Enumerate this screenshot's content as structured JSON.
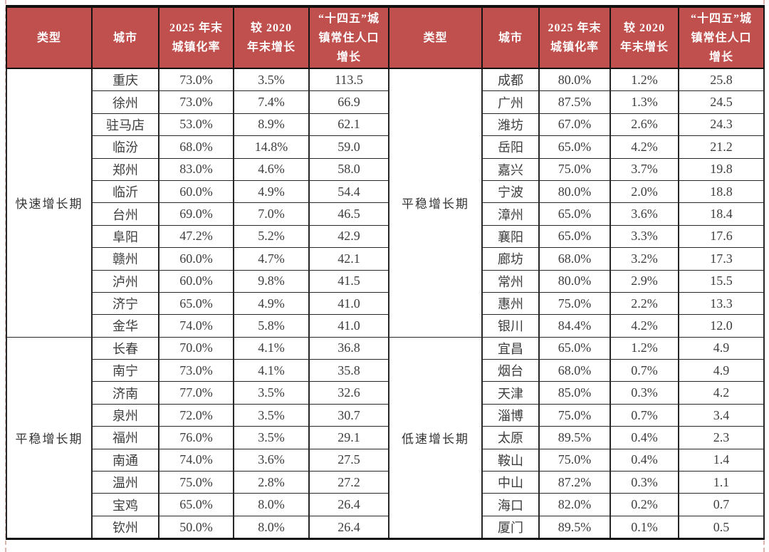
{
  "colors": {
    "header_bg": "#C0504D",
    "header_text": "#FFFFFF",
    "body_text": "#3D3D3D",
    "grid_line": "#262626",
    "thick_border": "#101010",
    "page_bg": "#FFFFFF",
    "page_boundary_dash": "#DCB4AE"
  },
  "header": {
    "columns": [
      "类型",
      "城市",
      "2025 年末\n城镇化率",
      "较 2020\n年末增长",
      "“十四五”城\n镇常住人口\n增长"
    ]
  },
  "left_half": {
    "sections": [
      {
        "type": "快速增长期",
        "rows": [
          [
            "重庆",
            "73.0%",
            "3.5%",
            "113.5"
          ],
          [
            "徐州",
            "73.0%",
            "7.4%",
            "66.9"
          ],
          [
            "驻马店",
            "53.0%",
            "8.9%",
            "62.1"
          ],
          [
            "临汾",
            "68.0%",
            "14.8%",
            "59.0"
          ],
          [
            "郑州",
            "83.0%",
            "4.6%",
            "58.0"
          ],
          [
            "临沂",
            "60.0%",
            "4.9%",
            "54.4"
          ],
          [
            "台州",
            "69.0%",
            "7.0%",
            "46.5"
          ],
          [
            "阜阳",
            "47.2%",
            "5.2%",
            "42.9"
          ],
          [
            "赣州",
            "60.0%",
            "4.7%",
            "42.1"
          ],
          [
            "泸州",
            "60.0%",
            "9.8%",
            "41.5"
          ],
          [
            "济宁",
            "65.0%",
            "4.9%",
            "41.0"
          ],
          [
            "金华",
            "74.0%",
            "5.8%",
            "41.0"
          ]
        ]
      },
      {
        "type": "平稳增长期",
        "rows": [
          [
            "长春",
            "70.0%",
            "4.1%",
            "36.8"
          ],
          [
            "南宁",
            "73.0%",
            "4.1%",
            "35.8"
          ],
          [
            "济南",
            "77.0%",
            "3.5%",
            "32.6"
          ],
          [
            "泉州",
            "72.0%",
            "3.5%",
            "30.7"
          ],
          [
            "福州",
            "76.0%",
            "3.5%",
            "29.1"
          ],
          [
            "南通",
            "74.0%",
            "3.6%",
            "27.5"
          ],
          [
            "温州",
            "75.0%",
            "2.8%",
            "27.2"
          ],
          [
            "宝鸡",
            "65.0%",
            "8.0%",
            "26.4"
          ],
          [
            "钦州",
            "50.0%",
            "8.0%",
            "26.4"
          ]
        ]
      }
    ]
  },
  "right_half": {
    "sections": [
      {
        "type": "平稳增长期",
        "rows": [
          [
            "成都",
            "80.0%",
            "1.2%",
            "25.8"
          ],
          [
            "广州",
            "87.5%",
            "1.3%",
            "24.5"
          ],
          [
            "潍坊",
            "67.0%",
            "2.6%",
            "24.3"
          ],
          [
            "岳阳",
            "65.0%",
            "4.2%",
            "21.2"
          ],
          [
            "嘉兴",
            "75.0%",
            "3.7%",
            "19.8"
          ],
          [
            "宁波",
            "80.0%",
            "2.0%",
            "18.8"
          ],
          [
            "漳州",
            "65.0%",
            "3.6%",
            "18.4"
          ],
          [
            "襄阳",
            "65.0%",
            "3.3%",
            "17.6"
          ],
          [
            "廊坊",
            "68.0%",
            "3.2%",
            "17.3"
          ],
          [
            "常州",
            "80.0%",
            "2.9%",
            "15.5"
          ],
          [
            "惠州",
            "75.0%",
            "2.2%",
            "13.3"
          ],
          [
            "银川",
            "84.4%",
            "4.2%",
            "12.0"
          ]
        ]
      },
      {
        "type": "低速增长期",
        "rows": [
          [
            "宜昌",
            "65.0%",
            "1.2%",
            "4.9"
          ],
          [
            "烟台",
            "68.0%",
            "0.7%",
            "4.9"
          ],
          [
            "天津",
            "85.0%",
            "0.3%",
            "4.2"
          ],
          [
            "淄博",
            "75.0%",
            "0.7%",
            "3.4"
          ],
          [
            "太原",
            "89.5%",
            "0.4%",
            "2.3"
          ],
          [
            "鞍山",
            "75.0%",
            "0.4%",
            "1.4"
          ],
          [
            "中山",
            "87.2%",
            "0.3%",
            "1.1"
          ],
          [
            "海口",
            "82.0%",
            "0.2%",
            "0.7"
          ],
          [
            "厦门",
            "89.5%",
            "0.1%",
            "0.5"
          ]
        ]
      }
    ]
  }
}
